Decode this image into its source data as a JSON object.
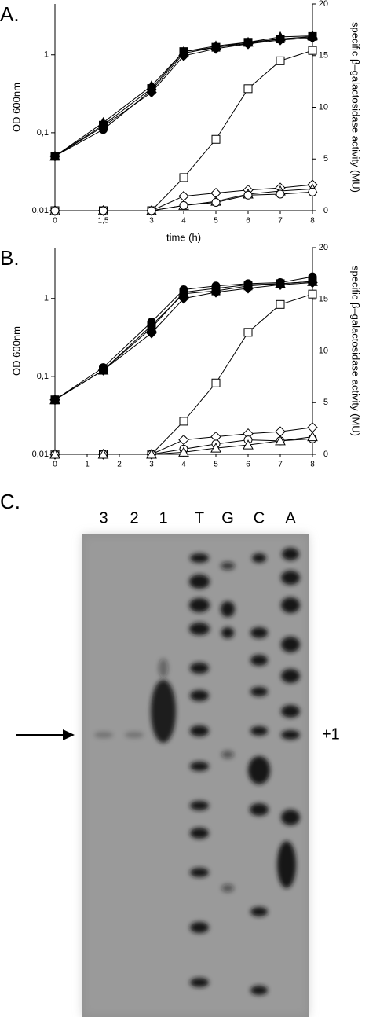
{
  "chart_data": [
    {
      "type": "line",
      "panel_label": "A.",
      "y_label": "OD 600nm",
      "y2_label": "specific β–galactosidase activity (MU)",
      "x_label": "time (h)",
      "x": [
        0,
        1.5,
        3,
        4,
        5,
        6,
        7,
        8
      ],
      "xlim": [
        0,
        8
      ],
      "xticks": [
        0,
        {
          "value": 1.5,
          "label": "1,5"
        },
        3,
        4,
        5,
        6,
        7,
        8
      ],
      "ylim": [
        0.01,
        4.5
      ],
      "log_y": true,
      "yticks": [
        {
          "value": 0.01,
          "label": "0,01"
        },
        {
          "value": 0.1,
          "label": "0,1"
        },
        1
      ],
      "y2lim": [
        0,
        20
      ],
      "y2ticks": [
        0,
        5,
        10,
        15,
        20
      ],
      "series": [
        {
          "color": "#000000",
          "marker": "circle",
          "filled": true,
          "values": [
            0.05,
            0.11,
            0.35,
            1.05,
            1.25,
            1.4,
            1.6,
            1.7
          ]
        },
        {
          "color": "#000000",
          "marker": "triangle",
          "filled": true,
          "values": [
            0.05,
            0.135,
            0.4,
            1.1,
            1.3,
            1.45,
            1.7,
            1.75
          ]
        },
        {
          "color": "#000000",
          "marker": "diamond",
          "filled": true,
          "values": [
            0.05,
            0.12,
            0.33,
            0.97,
            1.2,
            1.38,
            1.55,
            1.65
          ]
        },
        {
          "color": "#000000",
          "marker": "square",
          "filled": true,
          "values": [
            0.05,
            0.125,
            0.37,
            1.1,
            1.25,
            1.45,
            1.6,
            1.72
          ]
        },
        {
          "color": "#000000",
          "marker": "square",
          "filled": false,
          "axis": "y2",
          "values": [
            0,
            0,
            0,
            3.2,
            6.9,
            11.8,
            14.5,
            15.5
          ]
        },
        {
          "color": "#000000",
          "marker": "diamond",
          "filled": false,
          "axis": "y2",
          "values": [
            0,
            0,
            0,
            1.4,
            1.7,
            2.0,
            2.2,
            2.5
          ]
        },
        {
          "color": "#000000",
          "marker": "triangle",
          "filled": false,
          "axis": "y2",
          "values": [
            0,
            0,
            0,
            0.5,
            0.9,
            1.6,
            1.9,
            2.1
          ]
        },
        {
          "color": "#000000",
          "marker": "circle",
          "filled": false,
          "axis": "y2",
          "values": [
            0,
            0,
            0,
            0.5,
            0.8,
            1.5,
            1.6,
            1.8
          ]
        }
      ]
    },
    {
      "type": "line",
      "panel_label": "B.",
      "y_label": "OD 600nm",
      "y2_label": "specific β–galactosidase activity (MU)",
      "x": [
        0,
        1.5,
        3,
        4,
        5,
        6,
        7,
        8
      ],
      "xlim": [
        0,
        8
      ],
      "xticks": [
        0,
        1,
        2,
        3,
        4,
        5,
        6,
        7,
        8
      ],
      "ylim": [
        0.01,
        4.5
      ],
      "log_y": true,
      "yticks": [
        {
          "value": 0.01,
          "label": "0,01"
        },
        {
          "value": 0.1,
          "label": "0,1"
        },
        1
      ],
      "y2lim": [
        0,
        20
      ],
      "y2ticks": [
        0,
        5,
        10,
        15,
        20
      ],
      "series": [
        {
          "color": "#000000",
          "marker": "circle",
          "filled": true,
          "values": [
            0.05,
            0.13,
            0.5,
            1.3,
            1.45,
            1.55,
            1.6,
            1.9
          ]
        },
        {
          "color": "#000000",
          "marker": "triangle",
          "filled": true,
          "values": [
            0.05,
            0.12,
            0.42,
            1.2,
            1.35,
            1.5,
            1.55,
            1.65
          ]
        },
        {
          "color": "#000000",
          "marker": "diamond",
          "filled": true,
          "values": [
            0.05,
            0.12,
            0.36,
            1.0,
            1.2,
            1.35,
            1.5,
            1.6
          ]
        },
        {
          "color": "#000000",
          "marker": "square",
          "filled": true,
          "values": [
            0.05,
            0.12,
            0.45,
            1.15,
            1.25,
            1.45,
            1.55,
            1.65
          ]
        },
        {
          "color": "#000000",
          "marker": "square",
          "filled": false,
          "axis": "y2",
          "values": [
            0,
            0,
            0,
            3.2,
            6.9,
            11.8,
            14.5,
            15.5
          ]
        },
        {
          "color": "#000000",
          "marker": "diamond",
          "filled": false,
          "axis": "y2",
          "values": [
            0,
            0,
            0,
            1.4,
            1.7,
            2.0,
            2.2,
            2.6
          ]
        },
        {
          "color": "#000000",
          "marker": "circle",
          "filled": false,
          "axis": "y2",
          "values": [
            0,
            0,
            0,
            0.5,
            1.0,
            1.4,
            1.3,
            1.5
          ]
        },
        {
          "color": "#000000",
          "marker": "triangle",
          "filled": false,
          "axis": "y2",
          "values": [
            0,
            0,
            0,
            0.2,
            0.6,
            0.9,
            1.3,
            1.7
          ]
        }
      ]
    }
  ],
  "panel_c": {
    "label": "C.",
    "lanes": [
      "3",
      "2",
      "1",
      "T",
      "G",
      "C",
      "A"
    ],
    "marker": "+1"
  }
}
